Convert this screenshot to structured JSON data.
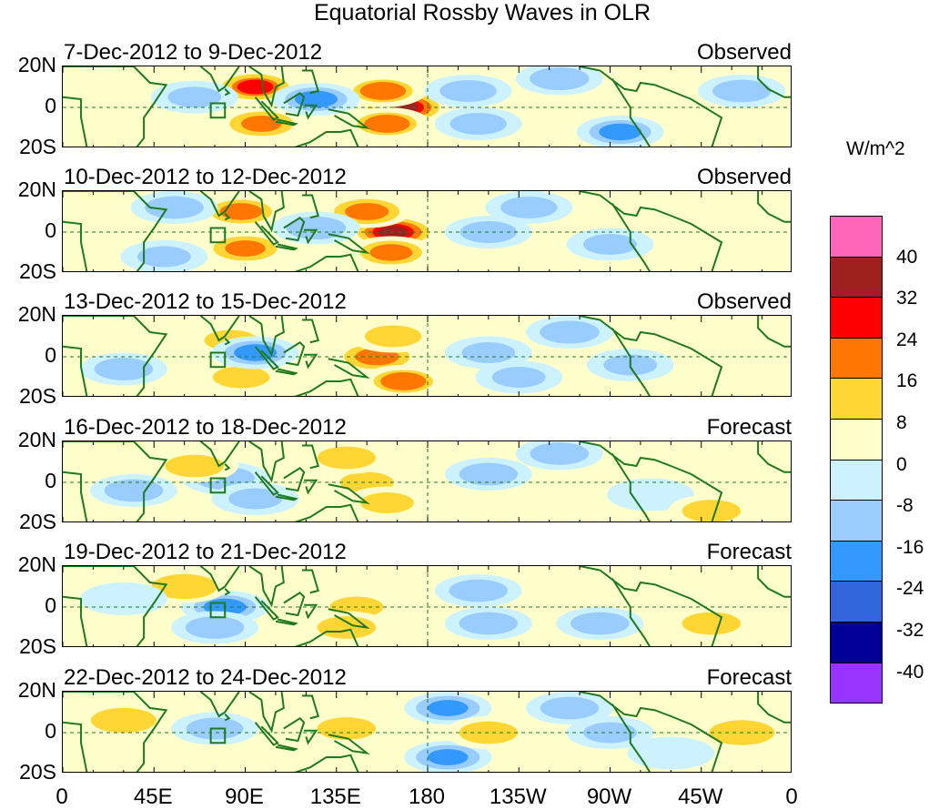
{
  "chart_data": {
    "type": "heatmap",
    "title": "Equatorial Rossby Waves in OLR",
    "units": "W/m^2",
    "x_ticks": [
      "0",
      "45E",
      "90E",
      "135E",
      "180",
      "135W",
      "90W",
      "45W",
      "0"
    ],
    "y_ticks": [
      "20N",
      "0",
      "20S"
    ],
    "xlim": [
      0,
      360
    ],
    "ylim": [
      -20,
      20
    ],
    "colorbar": {
      "levels": [
        "40",
        "32",
        "24",
        "16",
        "8",
        "0",
        "-8",
        "-16",
        "-24",
        "-32",
        "-40"
      ],
      "colors": [
        "#ff66bb",
        "#a02020",
        "#ff0000",
        "#ff7700",
        "#ffd633",
        "#ffffcc",
        "#ccf2ff",
        "#99ccff",
        "#3399ff",
        "#3366dd",
        "#000099",
        "#9933ff"
      ]
    },
    "panels": [
      {
        "period": "7-Dec-2012 to 9-Dec-2012",
        "kind": "Observed",
        "anomalies": [
          {
            "lon": 95,
            "lat": 10,
            "value": 24
          },
          {
            "lon": 98,
            "lat": -8,
            "value": 20
          },
          {
            "lon": 168,
            "lat": 0,
            "value": 34
          },
          {
            "lon": 158,
            "lat": 8,
            "value": 16
          },
          {
            "lon": 160,
            "lat": -8,
            "value": 16
          },
          {
            "lon": 200,
            "lat": 8,
            "value": -14
          },
          {
            "lon": 205,
            "lat": -8,
            "value": -14
          },
          {
            "lon": 125,
            "lat": 4,
            "value": -18
          },
          {
            "lon": 275,
            "lat": -12,
            "value": -18
          },
          {
            "lon": 245,
            "lat": 14,
            "value": -16
          },
          {
            "lon": 65,
            "lat": 5,
            "value": -12
          },
          {
            "lon": 335,
            "lat": 8,
            "value": -10
          }
        ]
      },
      {
        "period": "10-Dec-2012 to 12-Dec-2012",
        "kind": "Observed",
        "anomalies": [
          {
            "lon": 163,
            "lat": 0,
            "value": 34
          },
          {
            "lon": 150,
            "lat": 10,
            "value": 22
          },
          {
            "lon": 162,
            "lat": -10,
            "value": 18
          },
          {
            "lon": 88,
            "lat": 10,
            "value": 18
          },
          {
            "lon": 90,
            "lat": -8,
            "value": 20
          },
          {
            "lon": 125,
            "lat": 2,
            "value": -16
          },
          {
            "lon": 210,
            "lat": 0,
            "value": -14
          },
          {
            "lon": 230,
            "lat": 12,
            "value": -14
          },
          {
            "lon": 270,
            "lat": -6,
            "value": -12
          },
          {
            "lon": 50,
            "lat": -12,
            "value": -12
          },
          {
            "lon": 55,
            "lat": 12,
            "value": -10
          }
        ]
      },
      {
        "period": "13-Dec-2012 to 15-Dec-2012",
        "kind": "Observed",
        "anomalies": [
          {
            "lon": 155,
            "lat": 0,
            "value": 22
          },
          {
            "lon": 163,
            "lat": 10,
            "value": 14
          },
          {
            "lon": 168,
            "lat": -12,
            "value": 16
          },
          {
            "lon": 83,
            "lat": 8,
            "value": 12
          },
          {
            "lon": 88,
            "lat": -10,
            "value": 14
          },
          {
            "lon": 95,
            "lat": 2,
            "value": -18
          },
          {
            "lon": 210,
            "lat": 2,
            "value": -12
          },
          {
            "lon": 225,
            "lat": -10,
            "value": -12
          },
          {
            "lon": 250,
            "lat": 12,
            "value": -16
          },
          {
            "lon": 280,
            "lat": -4,
            "value": -12
          },
          {
            "lon": 30,
            "lat": -6,
            "value": -10
          }
        ]
      },
      {
        "period": "16-Dec-2012 to 18-Dec-2012",
        "kind": "Forecast",
        "anomalies": [
          {
            "lon": 150,
            "lat": 0,
            "value": 12
          },
          {
            "lon": 140,
            "lat": 12,
            "value": 10
          },
          {
            "lon": 160,
            "lat": -10,
            "value": 12
          },
          {
            "lon": 80,
            "lat": 2,
            "value": -16
          },
          {
            "lon": 95,
            "lat": -8,
            "value": -12
          },
          {
            "lon": 65,
            "lat": 8,
            "value": 10
          },
          {
            "lon": 210,
            "lat": 4,
            "value": -10
          },
          {
            "lon": 245,
            "lat": 14,
            "value": -10
          },
          {
            "lon": 290,
            "lat": -6,
            "value": -8
          },
          {
            "lon": 320,
            "lat": -14,
            "value": 10
          },
          {
            "lon": 35,
            "lat": -4,
            "value": -10
          }
        ]
      },
      {
        "period": "19-Dec-2012 to 21-Dec-2012",
        "kind": "Forecast",
        "anomalies": [
          {
            "lon": 80,
            "lat": 0,
            "value": -18
          },
          {
            "lon": 75,
            "lat": -10,
            "value": -10
          },
          {
            "lon": 145,
            "lat": 0,
            "value": 12
          },
          {
            "lon": 140,
            "lat": -10,
            "value": 10
          },
          {
            "lon": 205,
            "lat": 8,
            "value": -10
          },
          {
            "lon": 210,
            "lat": -8,
            "value": -10
          },
          {
            "lon": 265,
            "lat": -8,
            "value": -10
          },
          {
            "lon": 60,
            "lat": 10,
            "value": 8
          },
          {
            "lon": 320,
            "lat": -8,
            "value": 10
          },
          {
            "lon": 30,
            "lat": 4,
            "value": -8
          }
        ]
      },
      {
        "period": "22-Dec-2012 to 24-Dec-2012",
        "kind": "Forecast",
        "anomalies": [
          {
            "lon": 190,
            "lat": 12,
            "value": -20
          },
          {
            "lon": 190,
            "lat": -12,
            "value": -20
          },
          {
            "lon": 75,
            "lat": 2,
            "value": -14
          },
          {
            "lon": 140,
            "lat": 2,
            "value": 10
          },
          {
            "lon": 210,
            "lat": 0,
            "value": 10
          },
          {
            "lon": 270,
            "lat": 0,
            "value": -12
          },
          {
            "lon": 300,
            "lat": -10,
            "value": -8
          },
          {
            "lon": 30,
            "lat": 6,
            "value": 8
          },
          {
            "lon": 250,
            "lat": 12,
            "value": -10
          },
          {
            "lon": 335,
            "lat": 0,
            "value": 8
          }
        ]
      }
    ]
  }
}
